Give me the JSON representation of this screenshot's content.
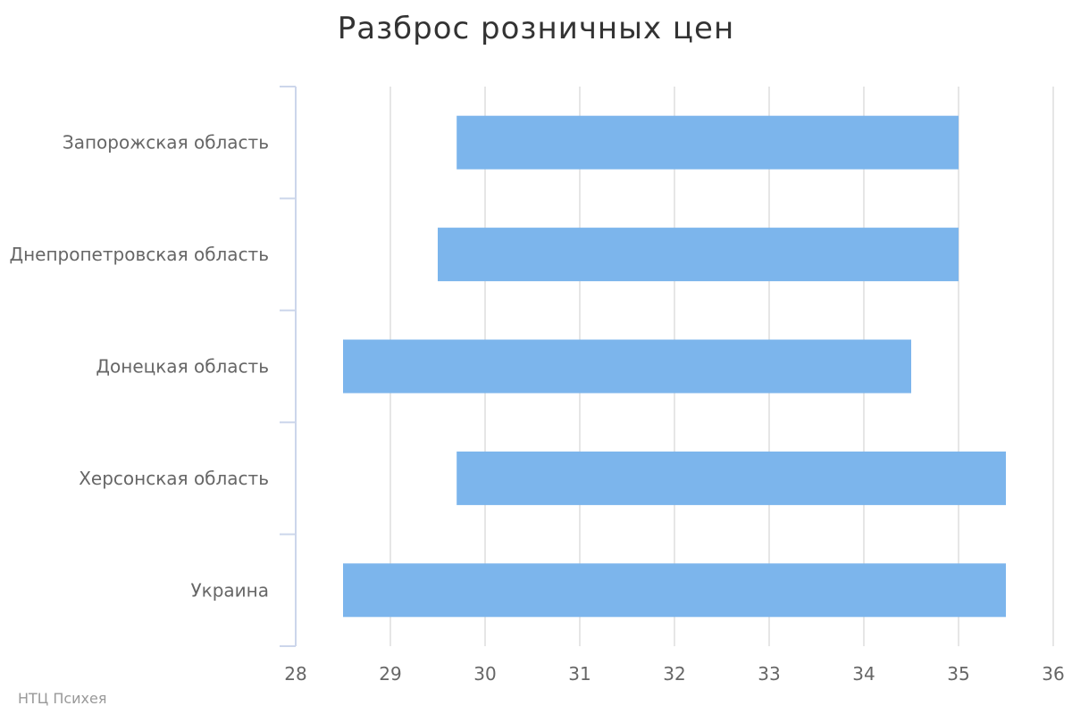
{
  "title": "Разброс розничных цен",
  "credit": "НТЦ Психея",
  "chart_data": {
    "type": "bar",
    "orientation": "horizontal",
    "variant": "range",
    "categories": [
      "Запорожская область",
      "Днепропетровская область",
      "Донецкая область",
      "Херсонская область",
      "Украина"
    ],
    "series": [
      {
        "low": [
          29.7,
          29.5,
          28.5,
          29.7,
          28.5
        ],
        "high": [
          35.0,
          35.0,
          34.5,
          35.5,
          35.5
        ]
      }
    ],
    "xlim": [
      28,
      36
    ],
    "xticks": [
      28,
      29,
      30,
      31,
      32,
      33,
      34,
      35,
      36
    ],
    "grid": true,
    "legend": "none",
    "colors": {
      "bar": "#7cb5ec",
      "grid": "#e6e6e6",
      "axis": "#ccd6eb"
    }
  }
}
